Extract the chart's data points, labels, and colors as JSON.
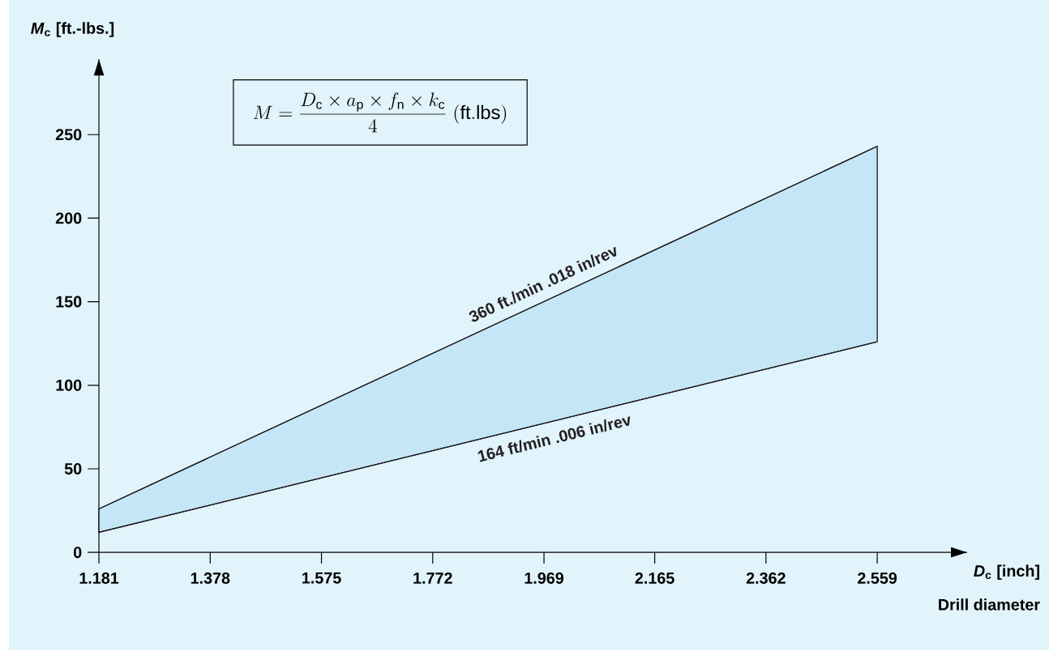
{
  "chart_data": {
    "type": "line",
    "xlabel": "*D*$_{c}$ [inch]",
    "ylabel": "*M*$_{c}$ [ft.-lbs.]",
    "annotations": [
      "M=\\frac{D_{\\mathrm{c}}\\times a_{\\mathrm{p}}\\times f_{\\mathrm{n}}\\times k_{\\mathrm{c}}}{4}\\;\\mathrm{(ft.lbs)}",
      "Drill diameter"
    ],
    "x": [
      1.181,
      2.559
    ],
    "series": [
      {
        "name": "164 ft/min  .006 in/rev",
        "color": "#231f20",
        "values": [
          12,
          126
        ]
      },
      {
        "name": "360 ft./min  .018 in/rev",
        "color": "#231f20",
        "values": [
          26,
          243
        ],
        "lower": [
          12,
          126
        ],
        "upper": [
          26,
          243
        ]
      }
    ],
    "xlim": [
      1.181,
      2.718
    ],
    "ylim": [
      0,
      295
    ],
    "xticks": [
      1.181,
      1.378,
      1.575,
      1.772,
      1.969,
      2.165,
      2.362,
      2.559
    ],
    "yticks": [
      0,
      50,
      100,
      150,
      200,
      250
    ],
    "marker": "none",
    "line_style": "solid"
  }
}
